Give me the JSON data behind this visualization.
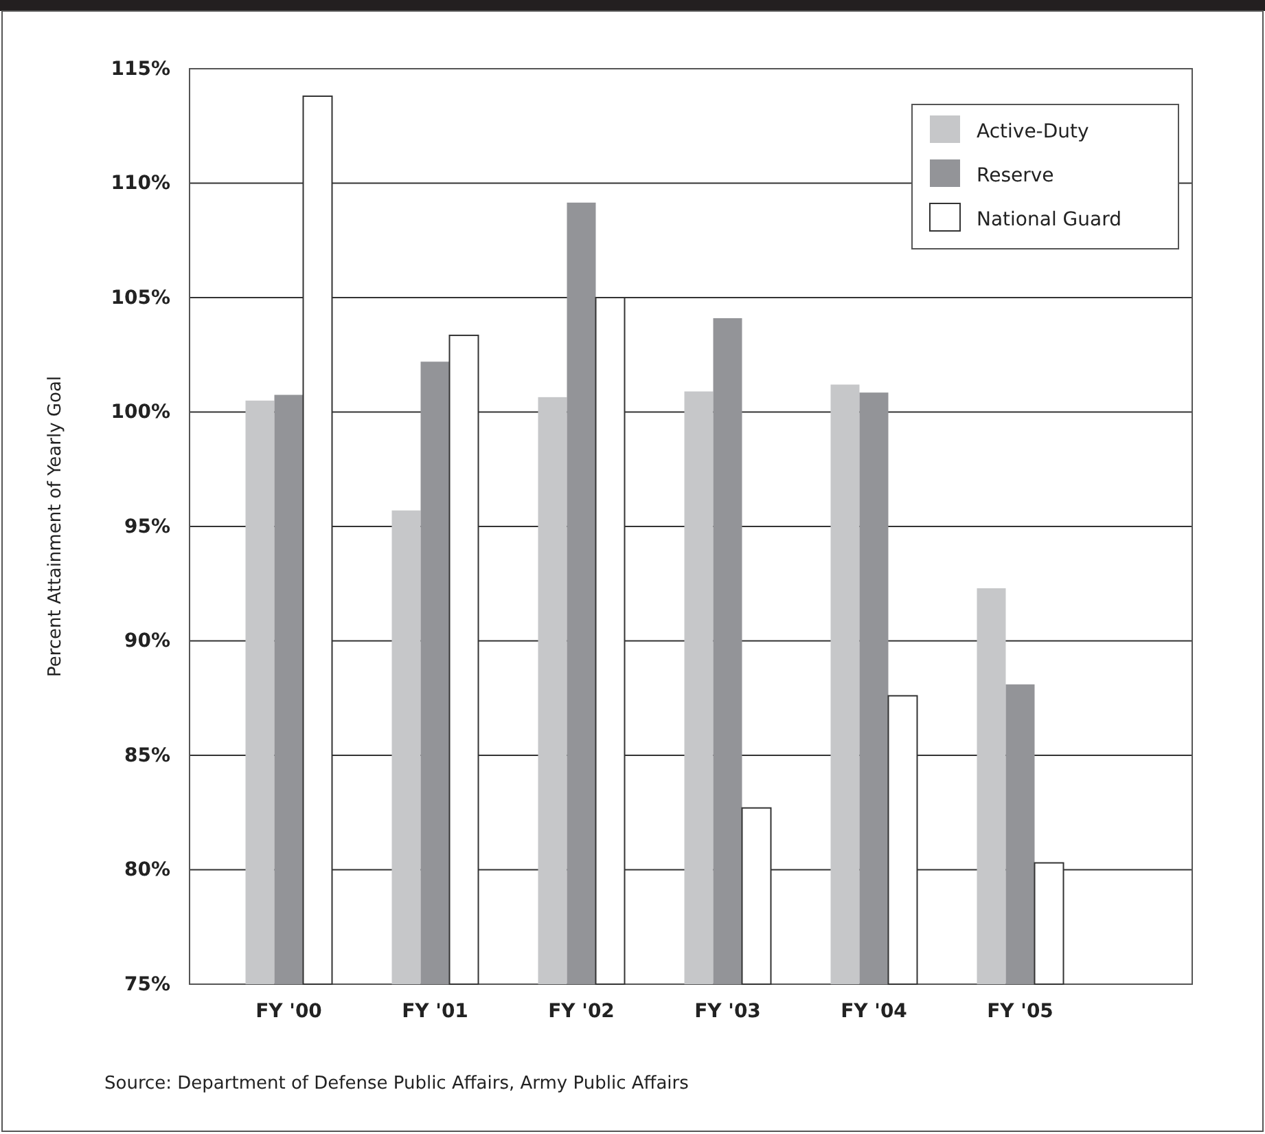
{
  "chart_data": {
    "type": "bar",
    "ylabel": "Percent Attainment of Yearly Goal",
    "categories": [
      "FY '00",
      "FY '01",
      "FY '02",
      "FY '03",
      "FY '04",
      "FY '05"
    ],
    "series": [
      {
        "name": "Active-Duty",
        "color": "#c6c7c9",
        "values": [
          100.5,
          95.7,
          100.65,
          100.9,
          101.2,
          92.3
        ]
      },
      {
        "name": "Reserve",
        "color": "#939498",
        "values": [
          100.75,
          102.2,
          109.15,
          104.1,
          100.85,
          88.1
        ]
      },
      {
        "name": "National Guard",
        "color": "#ffffff",
        "values": [
          113.8,
          103.35,
          105,
          82.7,
          87.6,
          80.3
        ]
      }
    ],
    "ylim": [
      75,
      115
    ],
    "yticks": [
      {
        "value": 75,
        "label": "75%"
      },
      {
        "value": 80,
        "label": "80%"
      },
      {
        "value": 85,
        "label": "85%"
      },
      {
        "value": 90,
        "label": "90%"
      },
      {
        "value": 95,
        "label": "95%"
      },
      {
        "value": 100,
        "label": "100%"
      },
      {
        "value": 105,
        "label": "105%"
      },
      {
        "value": 110,
        "label": "110%"
      },
      {
        "value": 115,
        "label": "115%"
      }
    ],
    "grid": "y",
    "legend": "top right",
    "annotations": [
      "Source: Department of Defense Public Affairs, Army Public Affairs"
    ]
  }
}
